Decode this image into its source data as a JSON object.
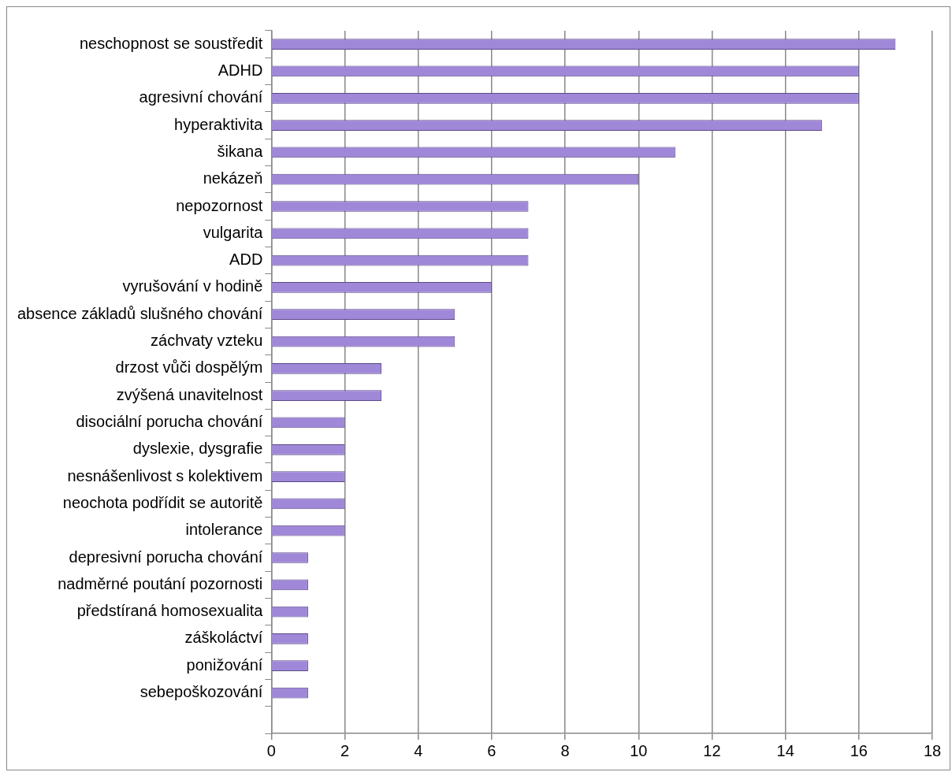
{
  "chart_data": {
    "type": "bar",
    "orientation": "horizontal",
    "categories": [
      "neschopnost se soustředit",
      "ADHD",
      "agresivní chování",
      "hyperaktivita",
      "šikana",
      "nekázeň",
      "nepozornost",
      "vulgarita",
      "ADD",
      "vyrušování v hodině",
      "absence základů slušného chování",
      "záchvaty vzteku",
      "drzost vůči dospělým",
      "zvýšená unavitelnost",
      "disociální porucha chování",
      "dyslexie, dysgrafie",
      "nesnášenlivost s kolektivem",
      "neochota podřídit se autoritě",
      "intolerance",
      "depresivní porucha chování",
      "nadměrné poutání pozornosti",
      "předstíraná homosexualita",
      "záškoláctví",
      "ponižování",
      "sebepoškozování",
      null
    ],
    "values": [
      17,
      16,
      16,
      15,
      11,
      10,
      7,
      7,
      7,
      6,
      5,
      5,
      3,
      3,
      2,
      2,
      2,
      2,
      2,
      1,
      1,
      1,
      1,
      1,
      1,
      null
    ],
    "color": "#9f88d8",
    "xlim": [
      0,
      18
    ],
    "xticks": [
      0,
      2,
      4,
      6,
      8,
      10,
      12,
      14,
      16,
      18
    ],
    "grid": "x",
    "legend": false
  }
}
